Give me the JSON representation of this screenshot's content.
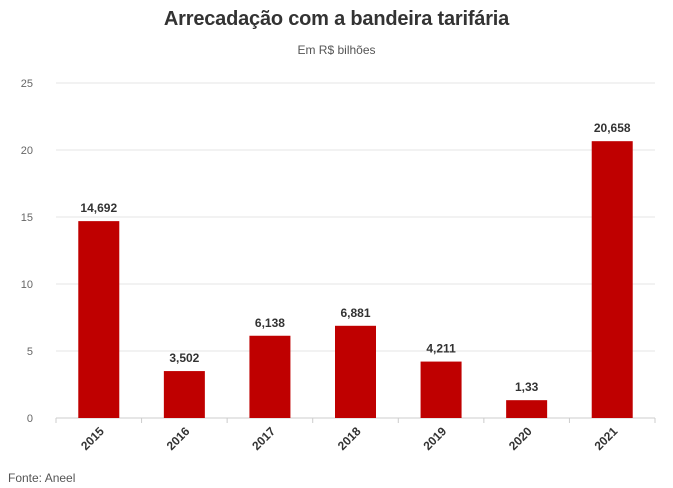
{
  "chart_data": {
    "type": "bar",
    "title": "Arrecadação com a bandeira tarifária",
    "subtitle": "Em R$ bilhões",
    "categories": [
      "2015",
      "2016",
      "2017",
      "2018",
      "2019",
      "2020",
      "2021"
    ],
    "values": [
      14.692,
      3.502,
      6.138,
      6.881,
      4.211,
      1.33,
      20.658
    ],
    "data_labels": [
      "14,692",
      "3,502",
      "6,138",
      "6,881",
      "4,211",
      "1,33",
      "20,658"
    ],
    "ylim": [
      0,
      25
    ],
    "yticks": [
      0,
      5,
      10,
      15,
      20,
      25
    ],
    "grid": true,
    "bar_color": "#bf0000",
    "source": "Fonte: Aneel"
  }
}
